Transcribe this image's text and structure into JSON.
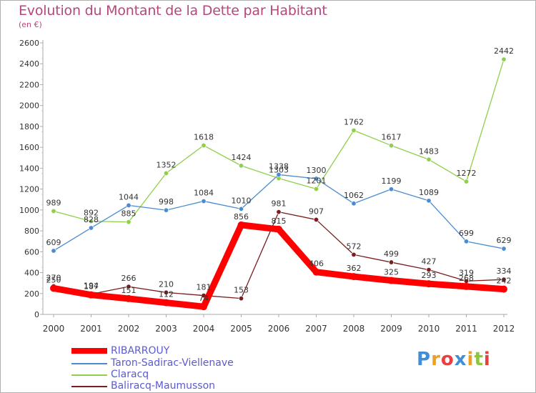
{
  "title": "Evolution du Montant de la Dette par Habitant",
  "subtitle": "(en €)",
  "logo": {
    "letters": [
      {
        "ch": "P",
        "color": "#3f8fd6"
      },
      {
        "ch": "r",
        "color": "#f0a020"
      },
      {
        "ch": "o",
        "color": "#e84040"
      },
      {
        "ch": "x",
        "color": "#3f8fd6"
      },
      {
        "ch": "i",
        "color": "#f0a020"
      },
      {
        "ch": "t",
        "color": "#8cc63f"
      },
      {
        "ch": "i",
        "color": "#e84040"
      }
    ]
  },
  "chart_data": {
    "type": "line",
    "x": [
      "2000",
      "2001",
      "2002",
      "2003",
      "2004",
      "2005",
      "2006",
      "2007",
      "2008",
      "2009",
      "2010",
      "2011",
      "2012"
    ],
    "yticks": [
      "0",
      "200",
      "400",
      "600",
      "800",
      "1000",
      "1200",
      "1400",
      "1600",
      "1800",
      "2000",
      "2200",
      "2400",
      "2600"
    ],
    "ylim": [
      0,
      2600
    ],
    "grid": false,
    "legend_position": "bottom-left",
    "series": [
      {
        "name": "RIBARROUY",
        "color": "#ff0000",
        "values": [
          250,
          187,
          151,
          112,
          74,
          856,
          815,
          406,
          362,
          325,
          293,
          268,
          242
        ]
      },
      {
        "name": "Taron-Sadirac-Viellenave",
        "color": "#4a8ccf",
        "values": [
          609,
          828,
          1044,
          998,
          1084,
          1010,
          1338,
          1300,
          1062,
          1199,
          1089,
          699,
          629
        ]
      },
      {
        "name": "Claracq",
        "color": "#8fcf4a",
        "values": [
          989,
          892,
          885,
          1352,
          1618,
          1424,
          1303,
          1201,
          1762,
          1617,
          1483,
          1272,
          2442
        ]
      },
      {
        "name": "Baliracq-Maumusson",
        "color": "#7a1e1e",
        "values": [
          270,
          194,
          266,
          210,
          181,
          153,
          981,
          907,
          572,
          499,
          427,
          319,
          334
        ]
      }
    ]
  }
}
